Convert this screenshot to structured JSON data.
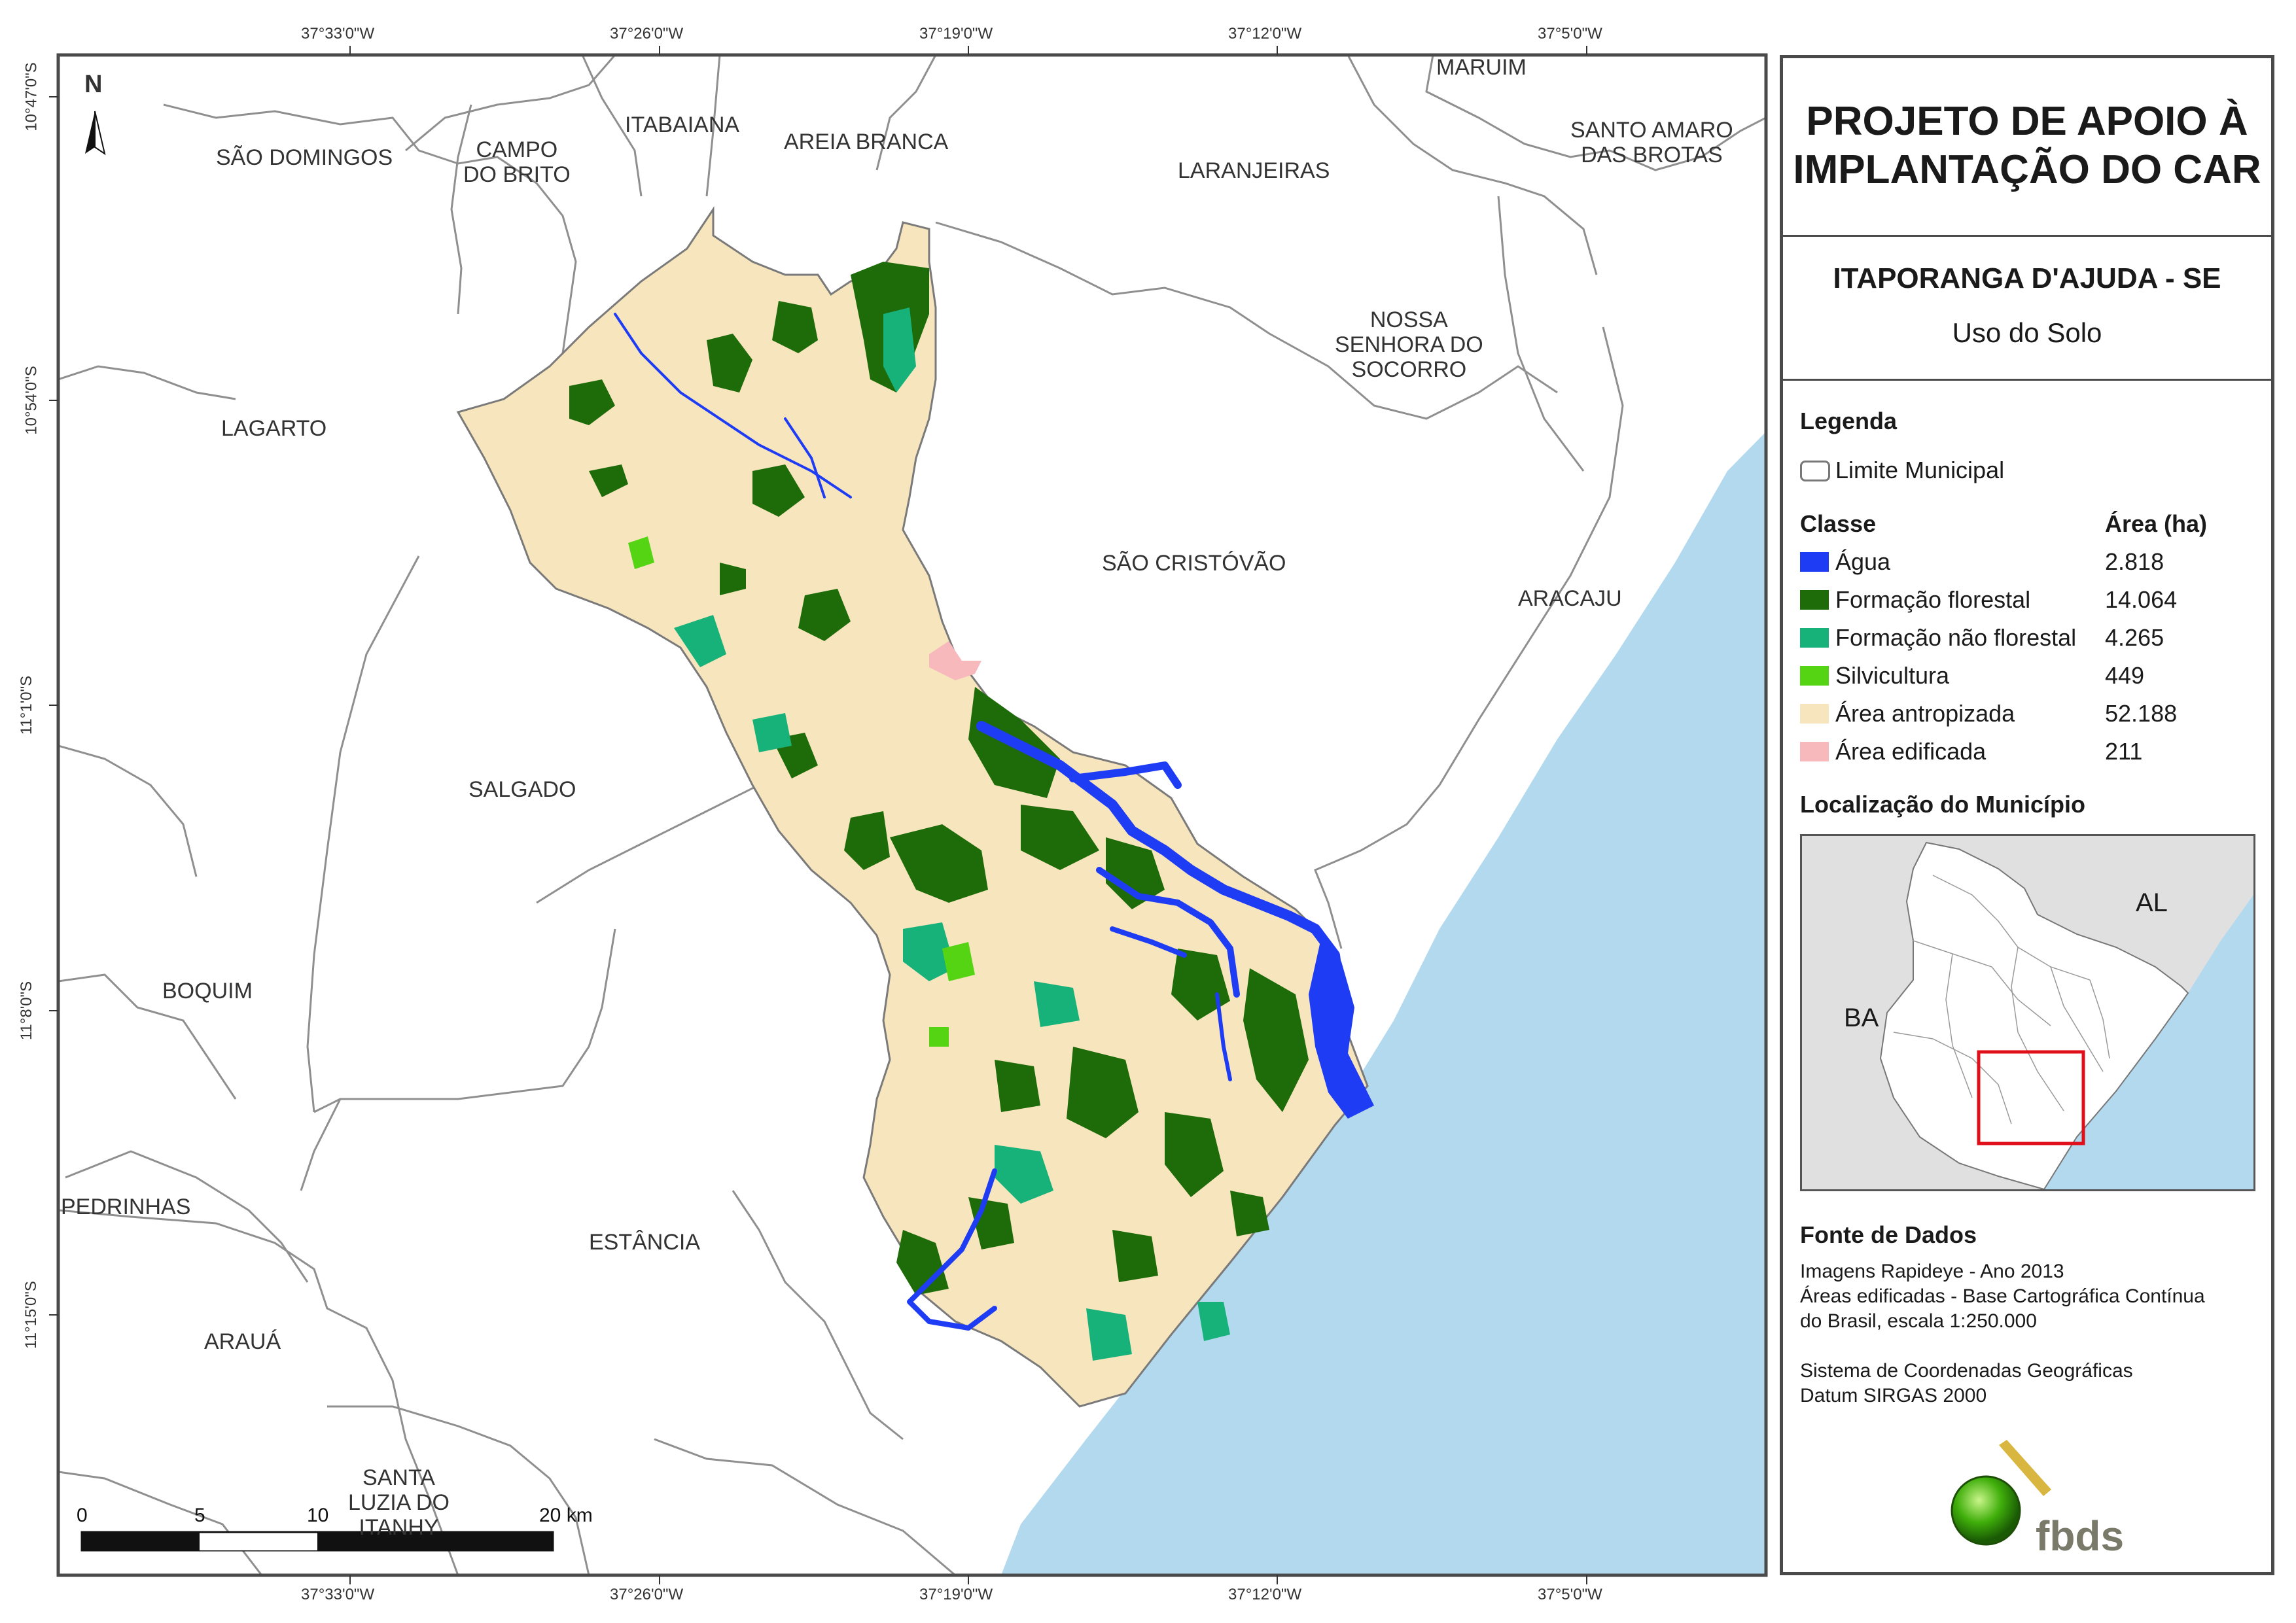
{
  "map": {
    "top_coords": [
      "37°33'0\"W",
      "37°26'0\"W",
      "37°19'0\"W",
      "37°12'0\"W",
      "37°5'0\"W"
    ],
    "bottom_coords": [
      "37°33'0\"W",
      "37°26'0\"W",
      "37°19'0\"W",
      "37°12'0\"W",
      "37°5'0\"W"
    ],
    "left_coords": [
      "10°47'0\"S",
      "10°54'0\"S",
      "11°1'0\"S",
      "11°8'0\"S",
      "11°15'0\"S"
    ],
    "north_label": "N",
    "municipalities": [
      {
        "name": "MARUIM"
      },
      {
        "name": "ITABAIANA"
      },
      {
        "name": "AREIA BRANCA"
      },
      {
        "name": "SÃO DOMINGOS"
      },
      {
        "name": "CAMPO\nDO BRITO"
      },
      {
        "name": "LARANJEIRAS"
      },
      {
        "name": "SANTO AMARO\nDAS BROTAS"
      },
      {
        "name": "NOSSA\nSENHORA DO\nSOCORRO"
      },
      {
        "name": "LAGARTO"
      },
      {
        "name": "SÃO CRISTÓVÃO"
      },
      {
        "name": "ARACAJU"
      },
      {
        "name": "SALGADO"
      },
      {
        "name": "BOQUIM"
      },
      {
        "name": "PEDRINHAS"
      },
      {
        "name": "ESTÂNCIA"
      },
      {
        "name": "ARAUÁ"
      },
      {
        "name": "SANTA\nLUZIA DO\nITANHY"
      }
    ],
    "scalebar": {
      "labels": [
        "0",
        "5",
        "10",
        "20 km"
      ]
    }
  },
  "panel": {
    "title": "PROJETO DE APOIO À\nIMPLANTAÇÃO DO CAR",
    "municipality": "ITAPORANGA D'AJUDA - SE",
    "theme": "Uso do Solo",
    "legend_heading": "Legenda",
    "limit_label": "Limite Municipal",
    "class_header": "Classe",
    "area_header": "Área (ha)",
    "classes": [
      {
        "label": "Água",
        "area": "2.818",
        "color": "#1f3cf5"
      },
      {
        "label": "Formação florestal",
        "area": "14.064",
        "color": "#1e6b0a"
      },
      {
        "label": "Formação não florestal",
        "area": "4.265",
        "color": "#17b27a"
      },
      {
        "label": "Silvicultura",
        "area": "449",
        "color": "#55d414"
      },
      {
        "label": "Área antropizada",
        "area": "52.188",
        "color": "#f6e5bd"
      },
      {
        "label": "Área edificada",
        "area": "211",
        "color": "#f7b9bc"
      }
    ],
    "location_heading": "Localização do Município",
    "inset_labels": [
      "AL",
      "BA"
    ],
    "source_heading": "Fonte de Dados",
    "source_lines": [
      "Imagens Rapideye - Ano 2013",
      "Áreas edificadas - Base Cartográfica Contínua",
      "do Brasil, escala 1:250.000"
    ],
    "crs_lines": [
      "Sistema de Coordenadas Geográficas",
      "Datum SIRGAS 2000"
    ],
    "logo_text": "fbds",
    "colors": {
      "ocean": "#b3d9ee",
      "border": "#4a4a4a",
      "inset_bg": "#e0e0e0",
      "highlight": "#e0101a"
    }
  }
}
